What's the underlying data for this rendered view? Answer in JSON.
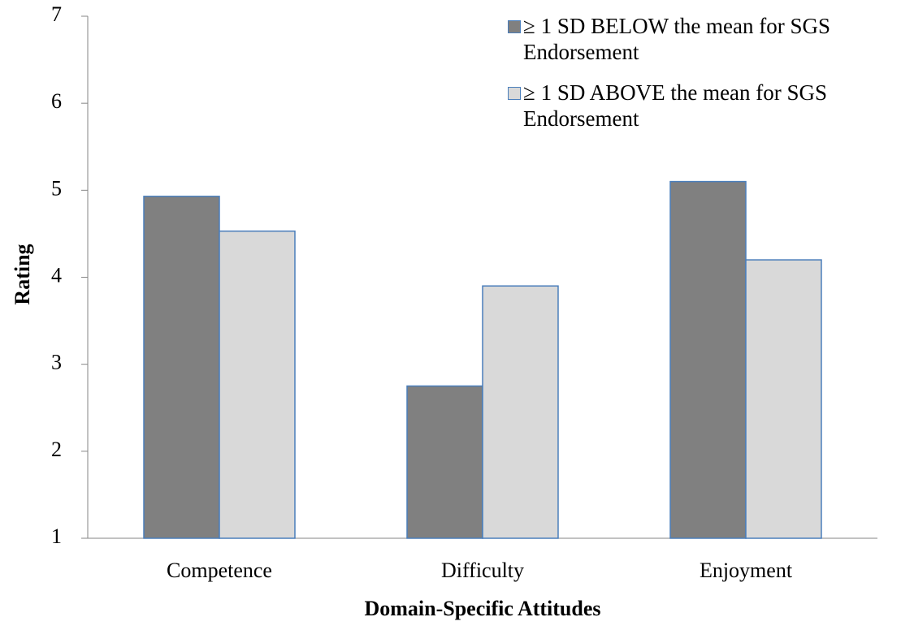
{
  "chart_data": {
    "type": "bar",
    "x_label": "Domain-Specific Attitudes",
    "y_label": "Rating",
    "categories": [
      "Competence",
      "Difficulty",
      "Enjoyment"
    ],
    "series": [
      {
        "name": "≥ 1 SD BELOW the mean for SGS Endorsement",
        "color": "#808080",
        "values": [
          4.93,
          2.75,
          5.1
        ]
      },
      {
        "name": "≥ 1 SD ABOVE the mean for SGS Endorsement",
        "color": "#d9d9d9",
        "values": [
          4.53,
          3.9,
          4.2
        ]
      }
    ],
    "ylim": [
      1,
      7
    ],
    "yticks": [
      1,
      2,
      3,
      4,
      5,
      6,
      7
    ],
    "grid": false,
    "legend": "upper right"
  }
}
